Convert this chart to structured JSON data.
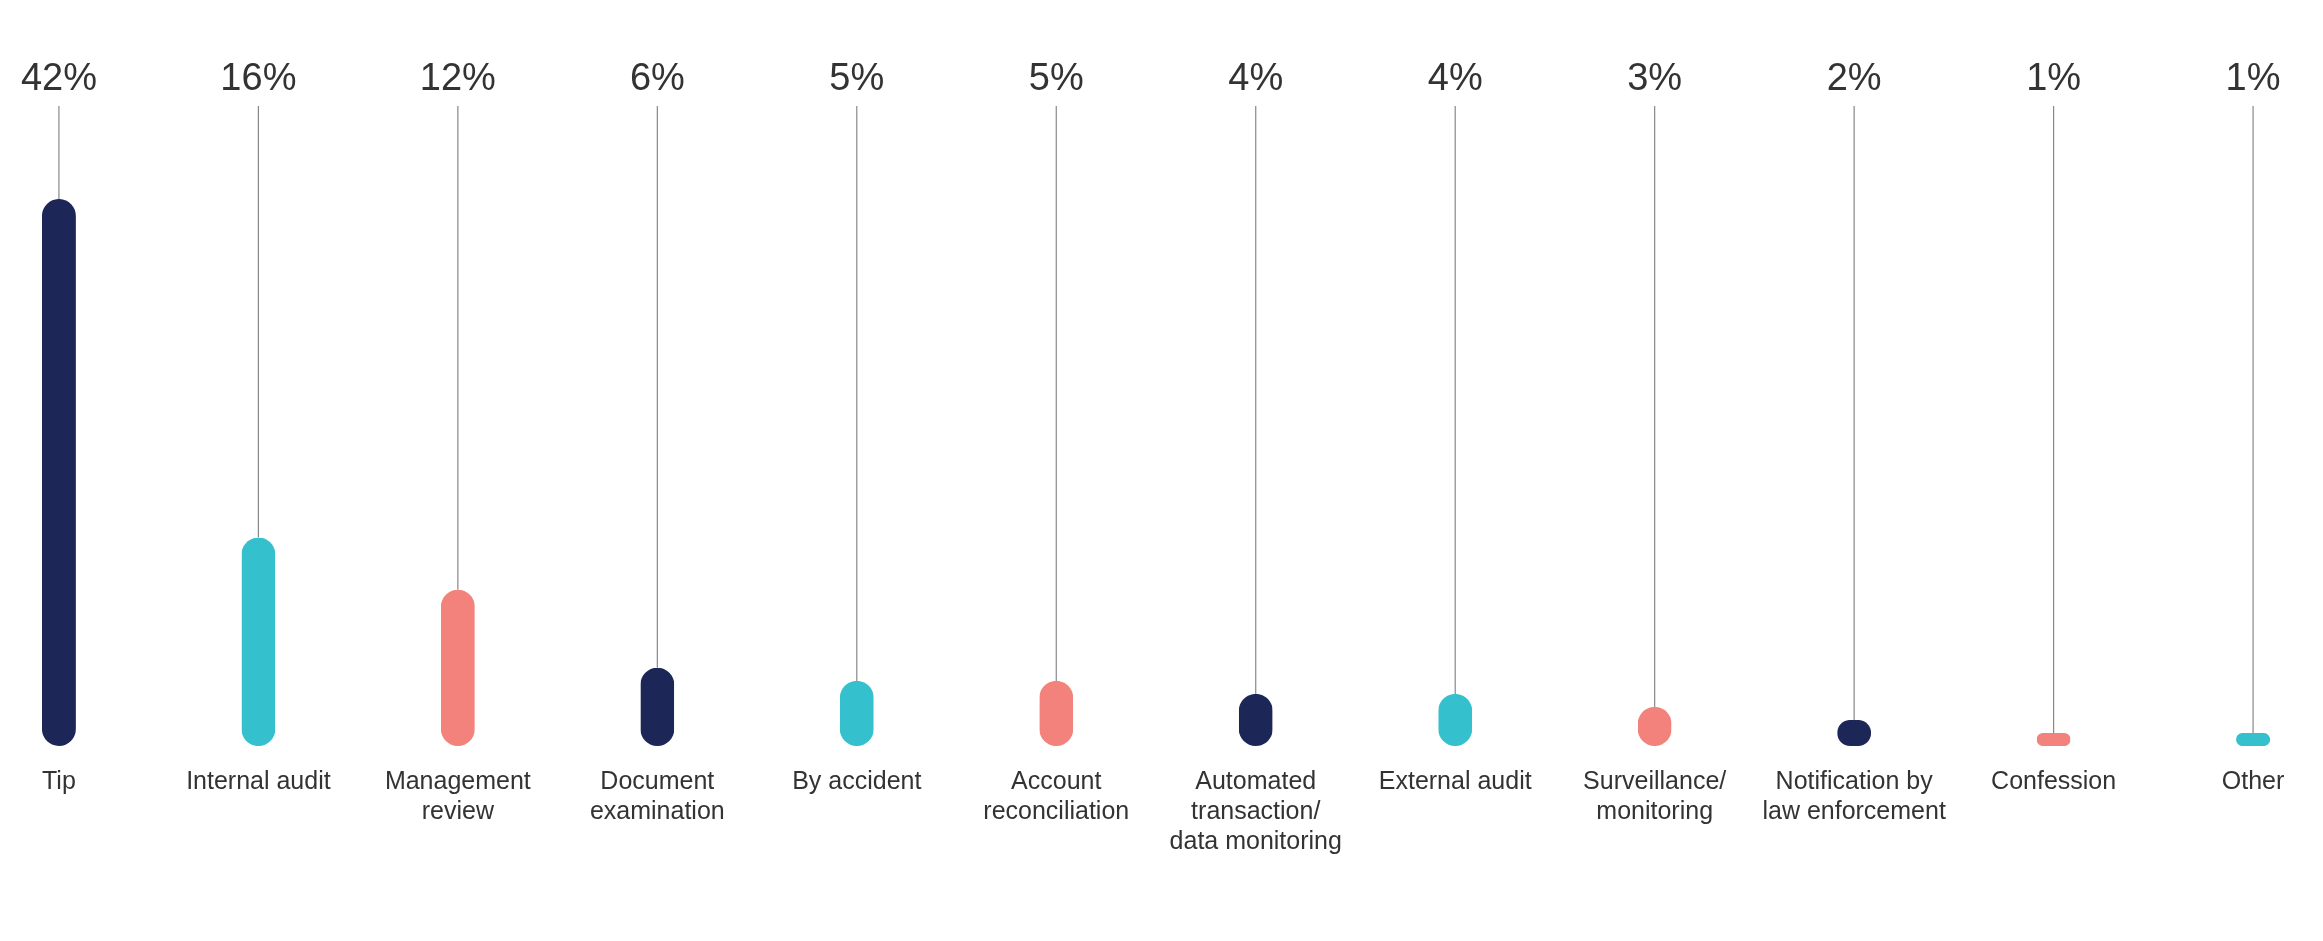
{
  "chart_data": {
    "type": "bar",
    "categories": [
      "Tip",
      "Internal audit",
      "Management review",
      "Document examination",
      "By accident",
      "Account reconciliation",
      "Automated transaction/ data monitoring",
      "External audit",
      "Surveillance/ monitoring",
      "Notification by law enforcement",
      "Confession",
      "Other"
    ],
    "values": [
      42,
      16,
      12,
      6,
      5,
      5,
      4,
      4,
      3,
      2,
      1,
      1
    ],
    "value_labels": [
      "42%",
      "16%",
      "12%",
      "6%",
      "5%",
      "5%",
      "4%",
      "4%",
      "3%",
      "2%",
      "1%",
      "1%"
    ],
    "colors": [
      "#1c2657",
      "#34c0cc",
      "#f2827b",
      "#1c2657",
      "#34c0cc",
      "#f2827b",
      "#1c2657",
      "#34c0cc",
      "#f2827b",
      "#1c2657",
      "#f2827b",
      "#34c0cc"
    ],
    "grid": "x"
  }
}
